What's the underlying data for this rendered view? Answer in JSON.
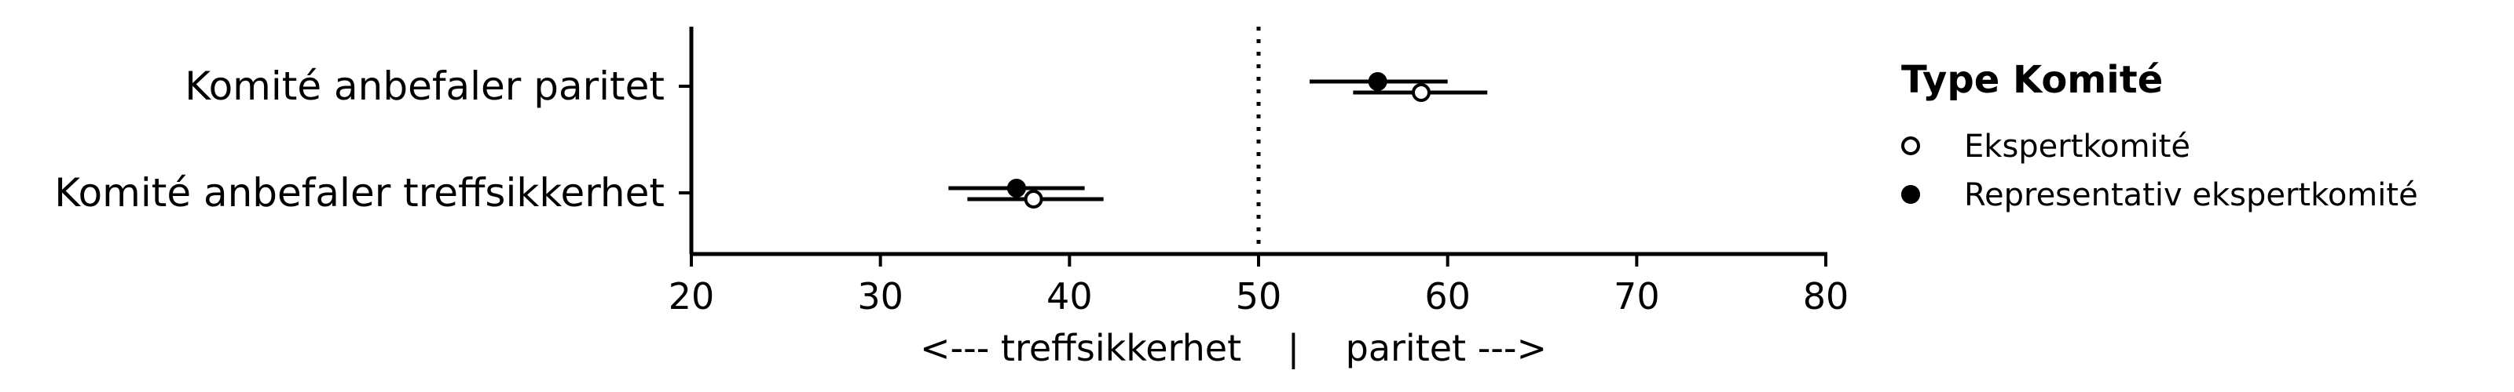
{
  "chart_data": {
    "type": "scatter",
    "xlim": [
      20,
      80
    ],
    "x_ticks": [
      20,
      30,
      40,
      50,
      60,
      70,
      80
    ],
    "xlabel": "<--- treffsikkerhet    |    paritet --->",
    "reference_line": 50,
    "categories": [
      "Komité anbefaler paritet",
      "Komité anbefaler treffsikkerhet"
    ],
    "series": [
      {
        "name": "Ekspertkomité",
        "marker": "open-circle",
        "points": [
          {
            "category": "Komité anbefaler paritet",
            "estimate": 58.6,
            "low": 55.0,
            "high": 62.1
          },
          {
            "category": "Komité anbefaler treffsikkerhet",
            "estimate": 38.1,
            "low": 34.6,
            "high": 41.8
          }
        ]
      },
      {
        "name": "Representativ ekspertkomité",
        "marker": "filled-circle",
        "points": [
          {
            "category": "Komité anbefaler paritet",
            "estimate": 56.3,
            "low": 52.7,
            "high": 60.0
          },
          {
            "category": "Komité anbefaler treffsikkerhet",
            "estimate": 37.2,
            "low": 33.6,
            "high": 40.8
          }
        ]
      }
    ],
    "legend": {
      "title": "Type Komité",
      "position": "right"
    }
  }
}
